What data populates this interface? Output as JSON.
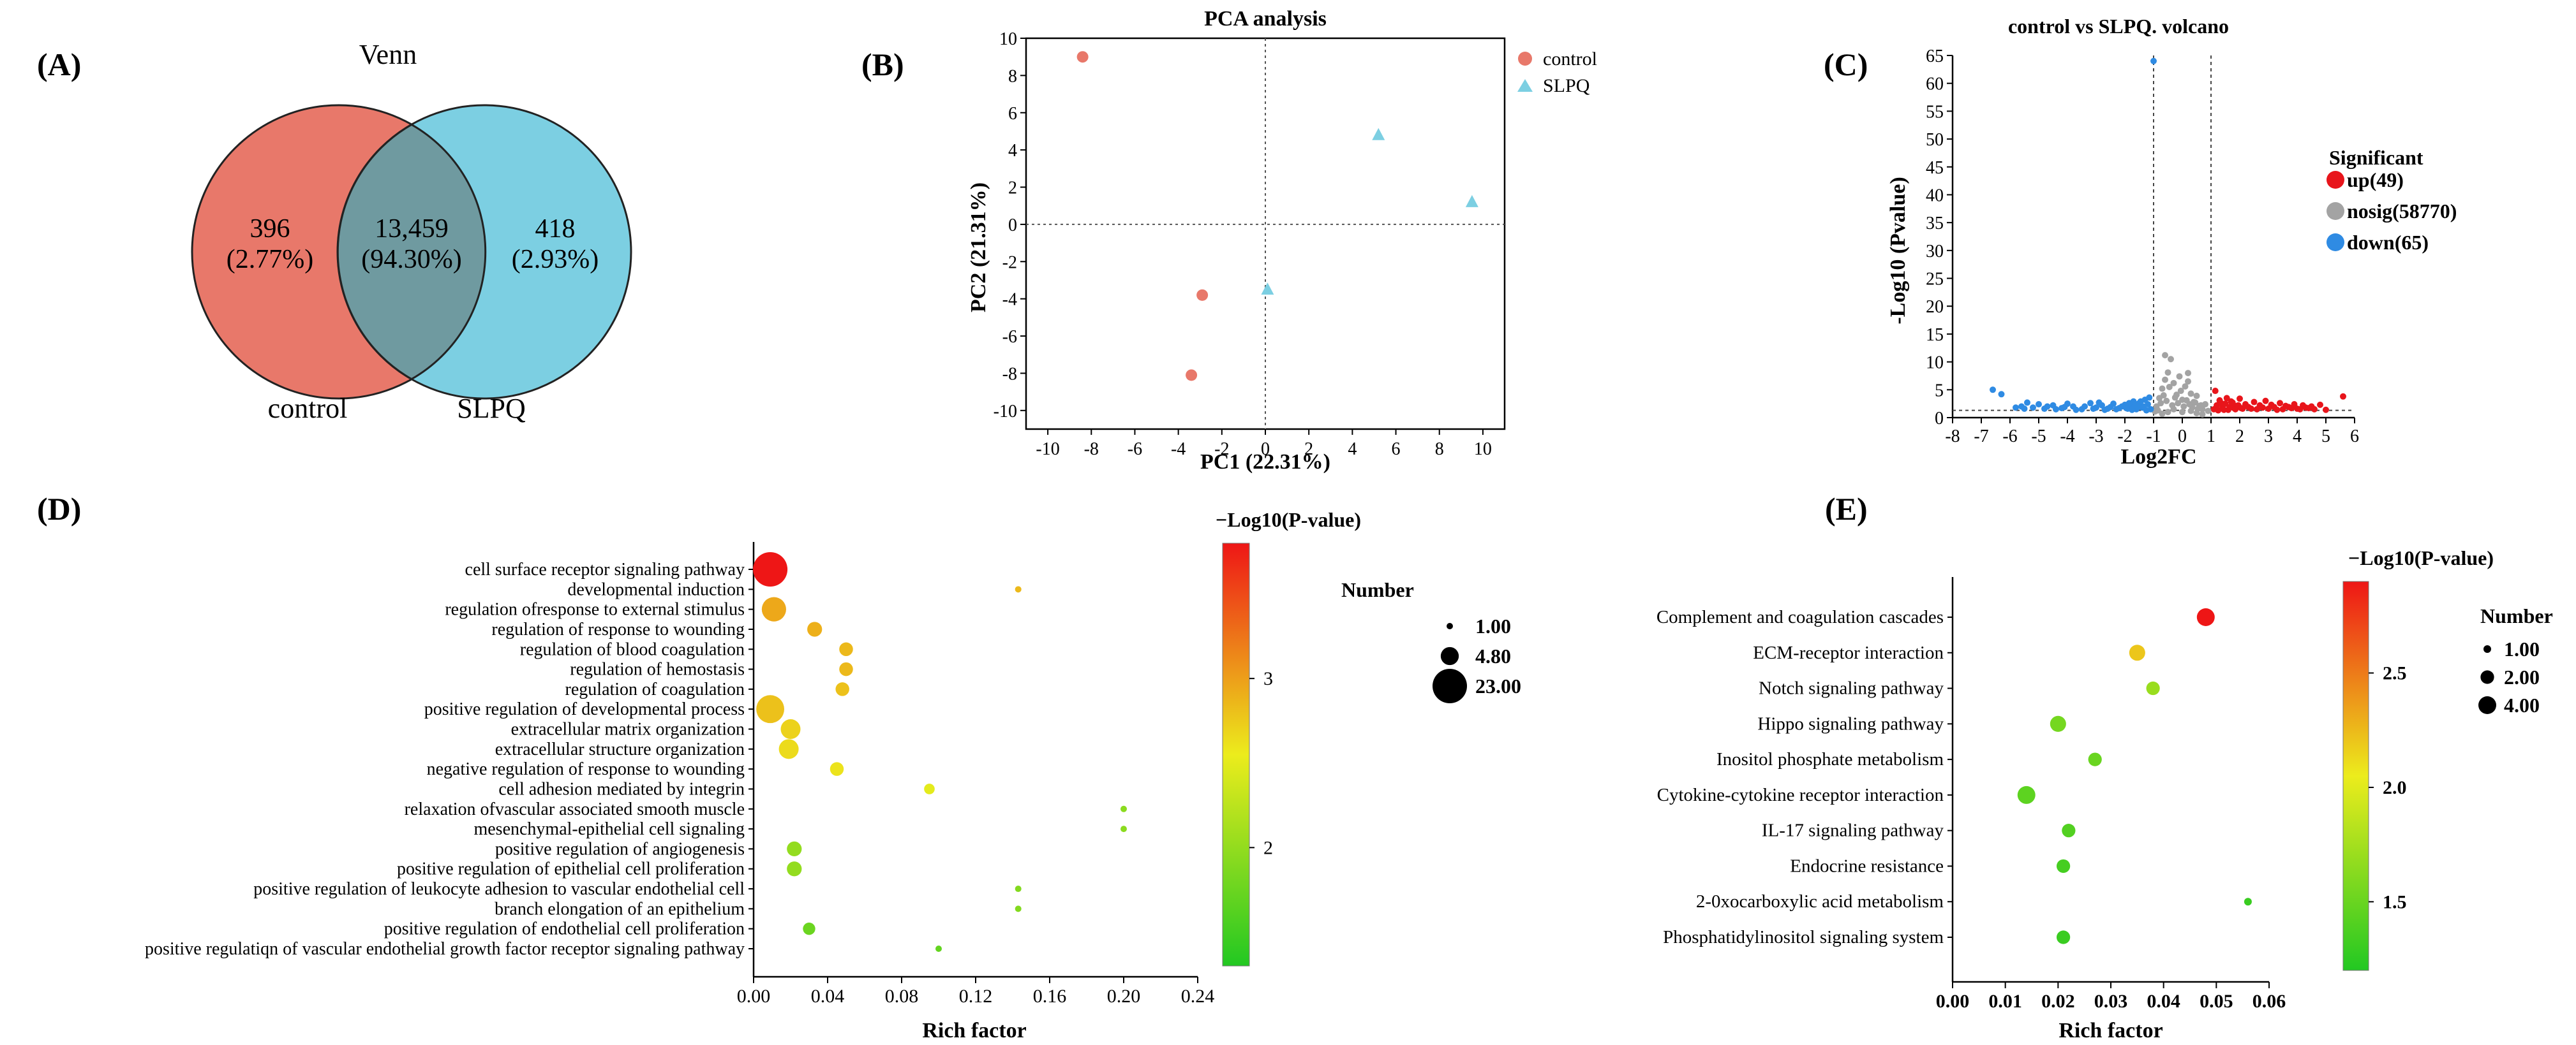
{
  "panels": {
    "A": "(A)",
    "B": "(B)",
    "C": "(C)",
    "D": "(D)",
    "E": "(E)"
  },
  "colors": {
    "control": "#e8786a",
    "slpq": "#7ccfe2",
    "overlap": "#6f9aa0",
    "up": "#e8151b",
    "nosig": "#a3a3a3",
    "down": "#2f8be3"
  },
  "chart_data": [
    {
      "id": "venn",
      "type": "venn",
      "title": "Venn",
      "sets": [
        "control",
        "SLPQ"
      ],
      "regions": [
        {
          "name": "control only",
          "count": "396",
          "pct": "(2.77%)"
        },
        {
          "name": "overlap",
          "count": "13,459",
          "pct": "(94.30%)"
        },
        {
          "name": "SLPQ only",
          "count": "418",
          "pct": "(2.93%)"
        }
      ]
    },
    {
      "id": "pca",
      "type": "scatter",
      "title": "PCA analysis",
      "xlabel": "PC1 (22.31%)",
      "ylabel": "PC2 (21.31%)",
      "xlim": [
        -11,
        11
      ],
      "ylim": [
        -11,
        10
      ],
      "xticks": [
        -10,
        -8,
        -6,
        -4,
        -2,
        0,
        2,
        4,
        6,
        8,
        10
      ],
      "yticks": [
        -10,
        -8,
        -6,
        -4,
        -2,
        0,
        2,
        4,
        6,
        8,
        10
      ],
      "series": [
        {
          "name": "control",
          "shape": "circle",
          "points": [
            [
              -8.4,
              9.0
            ],
            [
              -2.9,
              -3.8
            ],
            [
              -3.4,
              -8.1
            ]
          ]
        },
        {
          "name": "SLPQ",
          "shape": "triangle",
          "points": [
            [
              5.2,
              4.8
            ],
            [
              9.5,
              1.2
            ],
            [
              0.1,
              -3.5
            ]
          ]
        }
      ]
    },
    {
      "id": "volcano",
      "type": "scatter",
      "title": "control vs SLPQ. volcano",
      "xlabel": "Log2FC",
      "ylabel": "-Log10 (Pvalue)",
      "xlim": [
        -8,
        6
      ],
      "ylim": [
        0,
        65
      ],
      "xticks": [
        -8,
        -7,
        -6,
        -5,
        -4,
        -3,
        -2,
        -1,
        0,
        1,
        2,
        3,
        4,
        5,
        6
      ],
      "yticks": [
        0,
        5,
        10,
        15,
        20,
        25,
        30,
        35,
        40,
        45,
        50,
        55,
        60,
        65
      ],
      "vlines": [
        -1,
        1
      ],
      "hline": 1.3,
      "legend_title": "Significant",
      "legend": [
        "up(49)",
        "nosig(58770)",
        "down(65)"
      ],
      "series": [
        {
          "name": "up",
          "points": [
            [
              1.1,
              1.5
            ],
            [
              1.2,
              2.2
            ],
            [
              1.3,
              3.1
            ],
            [
              1.4,
              1.8
            ],
            [
              1.5,
              2.5
            ],
            [
              1.6,
              1.4
            ],
            [
              1.7,
              2.9
            ],
            [
              1.8,
              1.7
            ],
            [
              1.9,
              2.1
            ],
            [
              2.0,
              3.4
            ],
            [
              2.1,
              1.6
            ],
            [
              2.2,
              2.4
            ],
            [
              2.3,
              1.9
            ],
            [
              2.5,
              2.8
            ],
            [
              2.6,
              1.5
            ],
            [
              2.7,
              2.2
            ],
            [
              2.8,
              1.8
            ],
            [
              2.9,
              3.0
            ],
            [
              3.0,
              1.6
            ],
            [
              3.1,
              2.3
            ],
            [
              3.2,
              1.9
            ],
            [
              3.4,
              2.6
            ],
            [
              3.5,
              1.5
            ],
            [
              3.6,
              2.1
            ],
            [
              3.8,
              1.7
            ],
            [
              3.9,
              2.4
            ],
            [
              4.0,
              1.6
            ],
            [
              4.2,
              2.2
            ],
            [
              4.3,
              1.8
            ],
            [
              4.5,
              2.0
            ],
            [
              4.6,
              1.5
            ],
            [
              4.8,
              2.3
            ],
            [
              5.6,
              3.8
            ],
            [
              1.15,
              4.8
            ],
            [
              1.25,
              1.3
            ],
            [
              1.35,
              2.6
            ],
            [
              1.45,
              1.4
            ],
            [
              1.55,
              3.5
            ],
            [
              1.65,
              1.9
            ],
            [
              1.75,
              2.7
            ],
            [
              1.85,
              1.5
            ],
            [
              1.95,
              2.2
            ],
            [
              2.05,
              1.7
            ],
            [
              2.4,
              1.6
            ],
            [
              3.3,
              1.4
            ],
            [
              3.7,
              1.9
            ],
            [
              4.1,
              1.5
            ],
            [
              4.4,
              1.7
            ],
            [
              5.0,
              1.4
            ]
          ]
        },
        {
          "name": "nosig",
          "points": [
            [
              -0.9,
              2.0
            ],
            [
              -0.8,
              3.5
            ],
            [
              -0.7,
              5.2
            ],
            [
              -0.6,
              11.2
            ],
            [
              -0.5,
              8.1
            ],
            [
              -0.4,
              10.5
            ],
            [
              -0.3,
              6.2
            ],
            [
              -0.2,
              4.1
            ],
            [
              -0.1,
              7.4
            ],
            [
              0.0,
              3.2
            ],
            [
              0.1,
              5.6
            ],
            [
              0.2,
              6.5
            ],
            [
              0.3,
              4.3
            ],
            [
              0.4,
              2.8
            ],
            [
              0.5,
              3.9
            ],
            [
              0.6,
              2.1
            ],
            [
              0.7,
              1.5
            ],
            [
              0.8,
              2.4
            ],
            [
              -0.85,
              1.3
            ],
            [
              -0.75,
              2.6
            ],
            [
              -0.65,
              4.0
            ],
            [
              -0.55,
              3.0
            ],
            [
              -0.45,
              5.5
            ],
            [
              -0.35,
              2.2
            ],
            [
              -0.25,
              3.6
            ],
            [
              -0.15,
              2.6
            ],
            [
              -0.05,
              4.8
            ],
            [
              0.05,
              2.0
            ],
            [
              0.15,
              3.1
            ],
            [
              0.25,
              2.4
            ],
            [
              0.35,
              1.8
            ],
            [
              0.45,
              2.7
            ],
            [
              0.55,
              1.6
            ],
            [
              0.65,
              2.2
            ],
            [
              -0.95,
              1.1
            ],
            [
              0.9,
              1.2
            ],
            [
              -0.5,
              1.0
            ],
            [
              0.0,
              1.0
            ],
            [
              0.5,
              0.8
            ],
            [
              -0.3,
              1.5
            ],
            [
              0.3,
              1.2
            ],
            [
              -0.7,
              0.7
            ],
            [
              0.7,
              0.6
            ],
            [
              0.2,
              8.0
            ],
            [
              -0.6,
              6.8
            ]
          ]
        },
        {
          "name": "down",
          "points": [
            [
              -1.1,
              1.5
            ],
            [
              -1.2,
              2.4
            ],
            [
              -1.3,
              3.2
            ],
            [
              -1.4,
              1.8
            ],
            [
              -1.5,
              2.6
            ],
            [
              -1.6,
              1.5
            ],
            [
              -1.7,
              2.9
            ],
            [
              -1.8,
              2.0
            ],
            [
              -1.9,
              1.6
            ],
            [
              -2.0,
              2.3
            ],
            [
              -2.2,
              1.7
            ],
            [
              -2.4,
              2.5
            ],
            [
              -2.6,
              1.6
            ],
            [
              -2.8,
              2.2
            ],
            [
              -3.0,
              1.8
            ],
            [
              -3.2,
              2.6
            ],
            [
              -3.5,
              1.5
            ],
            [
              -3.8,
              2.0
            ],
            [
              -4.0,
              2.5
            ],
            [
              -4.2,
              1.7
            ],
            [
              -4.5,
              2.2
            ],
            [
              -4.8,
              1.6
            ],
            [
              -5.0,
              2.4
            ],
            [
              -5.2,
              1.8
            ],
            [
              -5.4,
              2.7
            ],
            [
              -5.6,
              2.0
            ],
            [
              -6.3,
              4.2
            ],
            [
              -6.6,
              5.0
            ],
            [
              -1.0,
              64.0
            ],
            [
              -1.15,
              3.6
            ],
            [
              -1.25,
              1.3
            ],
            [
              -1.35,
              2.0
            ],
            [
              -1.45,
              2.9
            ],
            [
              -1.55,
              1.9
            ],
            [
              -1.65,
              2.2
            ],
            [
              -1.75,
              1.4
            ],
            [
              -1.85,
              2.6
            ],
            [
              -1.95,
              1.7
            ],
            [
              -2.1,
              2.0
            ],
            [
              -2.3,
              1.5
            ],
            [
              -2.5,
              1.9
            ],
            [
              -2.7,
              1.4
            ],
            [
              -2.9,
              2.7
            ],
            [
              -3.1,
              1.6
            ],
            [
              -3.4,
              2.0
            ],
            [
              -3.7,
              1.4
            ],
            [
              -4.1,
              1.9
            ],
            [
              -4.4,
              1.5
            ],
            [
              -4.7,
              2.0
            ],
            [
              -5.5,
              1.6
            ],
            [
              -5.8,
              1.8
            ]
          ]
        }
      ]
    },
    {
      "id": "go_bubble",
      "type": "scatter",
      "subtype": "bubble",
      "xlabel": "Rich factor",
      "xlim": [
        0,
        0.24
      ],
      "xticks": [
        "0.00",
        "0.04",
        "0.08",
        "0.12",
        "0.16",
        "0.20",
        "0.24"
      ],
      "colorbar_title": "−Log10(P-value)",
      "colorbar_ticks": [
        {
          "label": "2",
          "value": 2
        },
        {
          "label": "3",
          "value": 3
        }
      ],
      "color_range": [
        1.3,
        3.8
      ],
      "size_title": "Number",
      "size_legend": [
        {
          "label": "1.00",
          "n": 1
        },
        {
          "label": "4.80",
          "n": 4.8
        },
        {
          "label": "23.00",
          "n": 23
        }
      ],
      "terms": [
        {
          "label": "cell surface receptor signaling pathway",
          "x": 0.009,
          "n": 23,
          "p": 3.8
        },
        {
          "label": "developmental induction",
          "x": 0.143,
          "n": 1,
          "p": 2.85
        },
        {
          "label": "regulation ofresponse to external stimulus",
          "x": 0.011,
          "n": 10,
          "p": 2.95
        },
        {
          "label": "regulation of response to wounding",
          "x": 0.033,
          "n": 3,
          "p": 2.9
        },
        {
          "label": "regulation of blood coagulation",
          "x": 0.05,
          "n": 2.5,
          "p": 2.85
        },
        {
          "label": "regulation of hemostasis",
          "x": 0.05,
          "n": 2.5,
          "p": 2.85
        },
        {
          "label": "regulation of coagulation",
          "x": 0.048,
          "n": 2.5,
          "p": 2.8
        },
        {
          "label": "positive regulation of developmental process",
          "x": 0.009,
          "n": 14,
          "p": 2.8
        },
        {
          "label": "extracellular matrix organization",
          "x": 0.02,
          "n": 6,
          "p": 2.7
        },
        {
          "label": "extracellular structure organization",
          "x": 0.019,
          "n": 6,
          "p": 2.65
        },
        {
          "label": "negative regulation of response to wounding",
          "x": 0.045,
          "n": 2.5,
          "p": 2.6
        },
        {
          "label": "cell adhesion mediated by integrin",
          "x": 0.095,
          "n": 1.5,
          "p": 2.5
        },
        {
          "label": "relaxation ofvascular associated smooth muscle",
          "x": 0.2,
          "n": 1,
          "p": 1.95
        },
        {
          "label": "mesenchymal-epithelial cell signaling",
          "x": 0.2,
          "n": 1,
          "p": 1.95
        },
        {
          "label": "positive regulation of angiogenesis",
          "x": 0.022,
          "n": 3,
          "p": 2.0
        },
        {
          "label": "positive regulation of epithelial cell proliferation",
          "x": 0.022,
          "n": 3,
          "p": 2.0
        },
        {
          "label": "positive regulation of leukocyte adhesion to vascular endothelial cell",
          "x": 0.143,
          "n": 1,
          "p": 1.9
        },
        {
          "label": "branch elongation of an epithelium",
          "x": 0.143,
          "n": 1,
          "p": 1.9
        },
        {
          "label": "positive regulation of endothelial cell proliferation",
          "x": 0.03,
          "n": 2,
          "p": 1.75
        },
        {
          "label": "positive regulatiqn of vascular endothelial growth factor receptor signaling pathway",
          "x": 0.1,
          "n": 1,
          "p": 1.7
        }
      ]
    },
    {
      "id": "kegg_bubble",
      "type": "scatter",
      "subtype": "bubble",
      "xlabel": "Rich factor",
      "xlim": [
        0,
        0.06
      ],
      "xticks": [
        "0.00",
        "0.01",
        "0.02",
        "0.03",
        "0.04",
        "0.05",
        "0.06"
      ],
      "colorbar_title": "−Log10(P-value)",
      "colorbar_ticks": [
        {
          "label": "1.5",
          "value": 1.5
        },
        {
          "label": "2.0",
          "value": 2.0
        },
        {
          "label": "2.5",
          "value": 2.5
        }
      ],
      "color_range": [
        1.2,
        2.9
      ],
      "size_title": "Number",
      "size_legend": [
        {
          "label": "1.00",
          "n": 1
        },
        {
          "label": "2.00",
          "n": 2
        },
        {
          "label": "4.00",
          "n": 4
        }
      ],
      "terms": [
        {
          "label": "Complement and coagulation cascades",
          "x": 0.048,
          "n": 4,
          "p": 2.9
        },
        {
          "label": "ECM-receptor interaction",
          "x": 0.035,
          "n": 3,
          "p": 2.2
        },
        {
          "label": "Notch signaling pathway",
          "x": 0.038,
          "n": 2,
          "p": 1.7
        },
        {
          "label": "Hippo signaling pathway",
          "x": 0.02,
          "n": 3,
          "p": 1.55
        },
        {
          "label": "Inositol phosphate metabolism",
          "x": 0.027,
          "n": 2,
          "p": 1.5
        },
        {
          "label": "Cytokine-cytokine receptor interaction",
          "x": 0.014,
          "n": 4,
          "p": 1.45
        },
        {
          "label": "IL-17 signaling pathway",
          "x": 0.022,
          "n": 2,
          "p": 1.4
        },
        {
          "label": "Endocrine resistance",
          "x": 0.021,
          "n": 2,
          "p": 1.35
        },
        {
          "label": "2-0xocarboxylic acid metabolism",
          "x": 0.056,
          "n": 1,
          "p": 1.3
        },
        {
          "label": "Phosphatidylinositol signaling system",
          "x": 0.021,
          "n": 2,
          "p": 1.3
        }
      ]
    }
  ]
}
